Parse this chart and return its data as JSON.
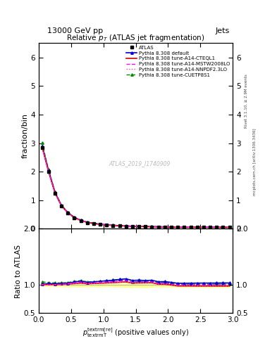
{
  "title": "13000 GeV pp",
  "jets_label": "Jets",
  "plot_title": "Relative $p_T$ (ATLAS jet fragmentation)",
  "ylabel_main": "fraction/bin",
  "ylabel_ratio": "Ratio to ATLAS",
  "watermark": "ATLAS_2019_I1740909",
  "right_label1": "Rivet 3.1.10, ≥ 2.9M events",
  "right_label2": "mcplots.cern.ch [arXiv:1306.3436]",
  "ylim_main": [
    0,
    6.5
  ],
  "ylim_ratio": [
    0.5,
    2.0
  ],
  "xlim": [
    0,
    3.0
  ],
  "x_data": [
    0.05,
    0.15,
    0.25,
    0.35,
    0.45,
    0.55,
    0.65,
    0.75,
    0.85,
    0.95,
    1.05,
    1.15,
    1.25,
    1.35,
    1.45,
    1.55,
    1.65,
    1.75,
    1.85,
    1.95,
    2.05,
    2.15,
    2.25,
    2.35,
    2.45,
    2.55,
    2.65,
    2.75,
    2.85,
    2.95
  ],
  "atlas_y": [
    2.85,
    2.0,
    1.25,
    0.8,
    0.55,
    0.38,
    0.28,
    0.22,
    0.18,
    0.15,
    0.13,
    0.115,
    0.1,
    0.09,
    0.085,
    0.08,
    0.075,
    0.07,
    0.068,
    0.065,
    0.063,
    0.062,
    0.06,
    0.058,
    0.057,
    0.056,
    0.055,
    0.054,
    0.053,
    0.052
  ],
  "atlas_err": [
    0.05,
    0.04,
    0.03,
    0.02,
    0.015,
    0.01,
    0.008,
    0.006,
    0.005,
    0.004,
    0.003,
    0.003,
    0.003,
    0.003,
    0.003,
    0.003,
    0.003,
    0.002,
    0.002,
    0.002,
    0.002,
    0.002,
    0.002,
    0.002,
    0.002,
    0.002,
    0.002,
    0.002,
    0.002,
    0.002
  ],
  "default_y": [
    2.9,
    2.05,
    1.28,
    0.82,
    0.57,
    0.4,
    0.3,
    0.23,
    0.19,
    0.16,
    0.14,
    0.125,
    0.11,
    0.1,
    0.092,
    0.087,
    0.081,
    0.076,
    0.072,
    0.069,
    0.066,
    0.064,
    0.062,
    0.06,
    0.059,
    0.058,
    0.057,
    0.056,
    0.055,
    0.054
  ],
  "cteql1_y": [
    2.88,
    2.02,
    1.26,
    0.81,
    0.56,
    0.39,
    0.29,
    0.225,
    0.185,
    0.155,
    0.135,
    0.12,
    0.105,
    0.095,
    0.088,
    0.083,
    0.078,
    0.073,
    0.069,
    0.066,
    0.063,
    0.061,
    0.059,
    0.057,
    0.056,
    0.055,
    0.054,
    0.053,
    0.052,
    0.051
  ],
  "mstw_y": [
    2.87,
    2.01,
    1.26,
    0.81,
    0.565,
    0.395,
    0.295,
    0.228,
    0.187,
    0.157,
    0.137,
    0.122,
    0.107,
    0.097,
    0.089,
    0.084,
    0.079,
    0.074,
    0.07,
    0.067,
    0.064,
    0.062,
    0.06,
    0.058,
    0.057,
    0.056,
    0.055,
    0.054,
    0.053,
    0.052
  ],
  "nnpdf_y": [
    2.86,
    2.0,
    1.255,
    0.805,
    0.558,
    0.39,
    0.29,
    0.225,
    0.185,
    0.155,
    0.135,
    0.12,
    0.105,
    0.095,
    0.088,
    0.083,
    0.078,
    0.073,
    0.069,
    0.066,
    0.063,
    0.061,
    0.059,
    0.057,
    0.056,
    0.055,
    0.054,
    0.053,
    0.052,
    0.051
  ],
  "cuetp_y": [
    3.02,
    2.08,
    1.3,
    0.83,
    0.575,
    0.405,
    0.302,
    0.233,
    0.191,
    0.16,
    0.139,
    0.123,
    0.108,
    0.097,
    0.09,
    0.085,
    0.08,
    0.075,
    0.071,
    0.068,
    0.065,
    0.063,
    0.061,
    0.059,
    0.058,
    0.057,
    0.056,
    0.055,
    0.054,
    0.053
  ],
  "default_ratio": [
    1.018,
    1.025,
    1.024,
    1.025,
    1.036,
    1.053,
    1.071,
    1.045,
    1.056,
    1.067,
    1.077,
    1.087,
    1.1,
    1.111,
    1.082,
    1.088,
    1.08,
    1.086,
    1.059,
    1.062,
    1.048,
    1.032,
    1.033,
    1.034,
    1.035,
    1.036,
    1.036,
    1.037,
    1.038,
    1.038
  ],
  "cteql1_ratio": [
    1.011,
    1.01,
    1.008,
    1.013,
    1.018,
    1.026,
    1.036,
    1.023,
    1.028,
    1.033,
    1.038,
    1.043,
    1.05,
    1.056,
    1.035,
    1.038,
    1.04,
    1.043,
    1.015,
    1.015,
    1.0,
    0.984,
    0.983,
    0.983,
    0.982,
    0.982,
    0.982,
    0.981,
    0.981,
    0.981
  ],
  "mstw_ratio": [
    1.007,
    1.005,
    1.008,
    1.013,
    1.027,
    1.039,
    1.054,
    1.036,
    1.039,
    1.047,
    1.054,
    1.061,
    1.07,
    1.078,
    1.047,
    1.05,
    1.053,
    1.057,
    1.029,
    1.031,
    1.016,
    1.0,
    1.0,
    1.0,
    1.0,
    1.0,
    1.0,
    1.0,
    1.0,
    1.0
  ],
  "nnpdf_ratio": [
    1.004,
    1.0,
    1.004,
    1.006,
    1.015,
    1.026,
    1.036,
    1.023,
    1.028,
    1.033,
    1.038,
    1.043,
    1.05,
    1.056,
    1.035,
    1.038,
    1.04,
    1.043,
    1.015,
    1.015,
    1.0,
    0.984,
    0.983,
    0.983,
    0.982,
    0.982,
    0.982,
    0.981,
    0.981,
    0.981
  ],
  "cuetp_ratio": [
    1.06,
    1.04,
    1.04,
    1.038,
    1.045,
    1.066,
    1.079,
    1.059,
    1.061,
    1.067,
    1.077,
    1.087,
    1.1,
    1.078,
    1.059,
    1.063,
    1.067,
    1.071,
    1.044,
    1.046,
    1.032,
    1.016,
    1.017,
    1.017,
    1.018,
    1.018,
    1.018,
    1.019,
    1.019,
    1.019
  ],
  "color_atlas": "#000000",
  "color_default": "#0000cc",
  "color_cteql1": "#cc0000",
  "color_mstw": "#ff00ff",
  "color_nnpdf": "#ff44aa",
  "color_cuetp": "#008800",
  "band_color": "#ffff99",
  "legend_entries": [
    "ATLAS",
    "Pythia 8.308 default",
    "Pythia 8.308 tune-A14-CTEQL1",
    "Pythia 8.308 tune-A14-MSTW2008LO",
    "Pythia 8.308 tune-A14-NNPDF2.3LO",
    "Pythia 8.308 tune-CUETP8S1"
  ]
}
